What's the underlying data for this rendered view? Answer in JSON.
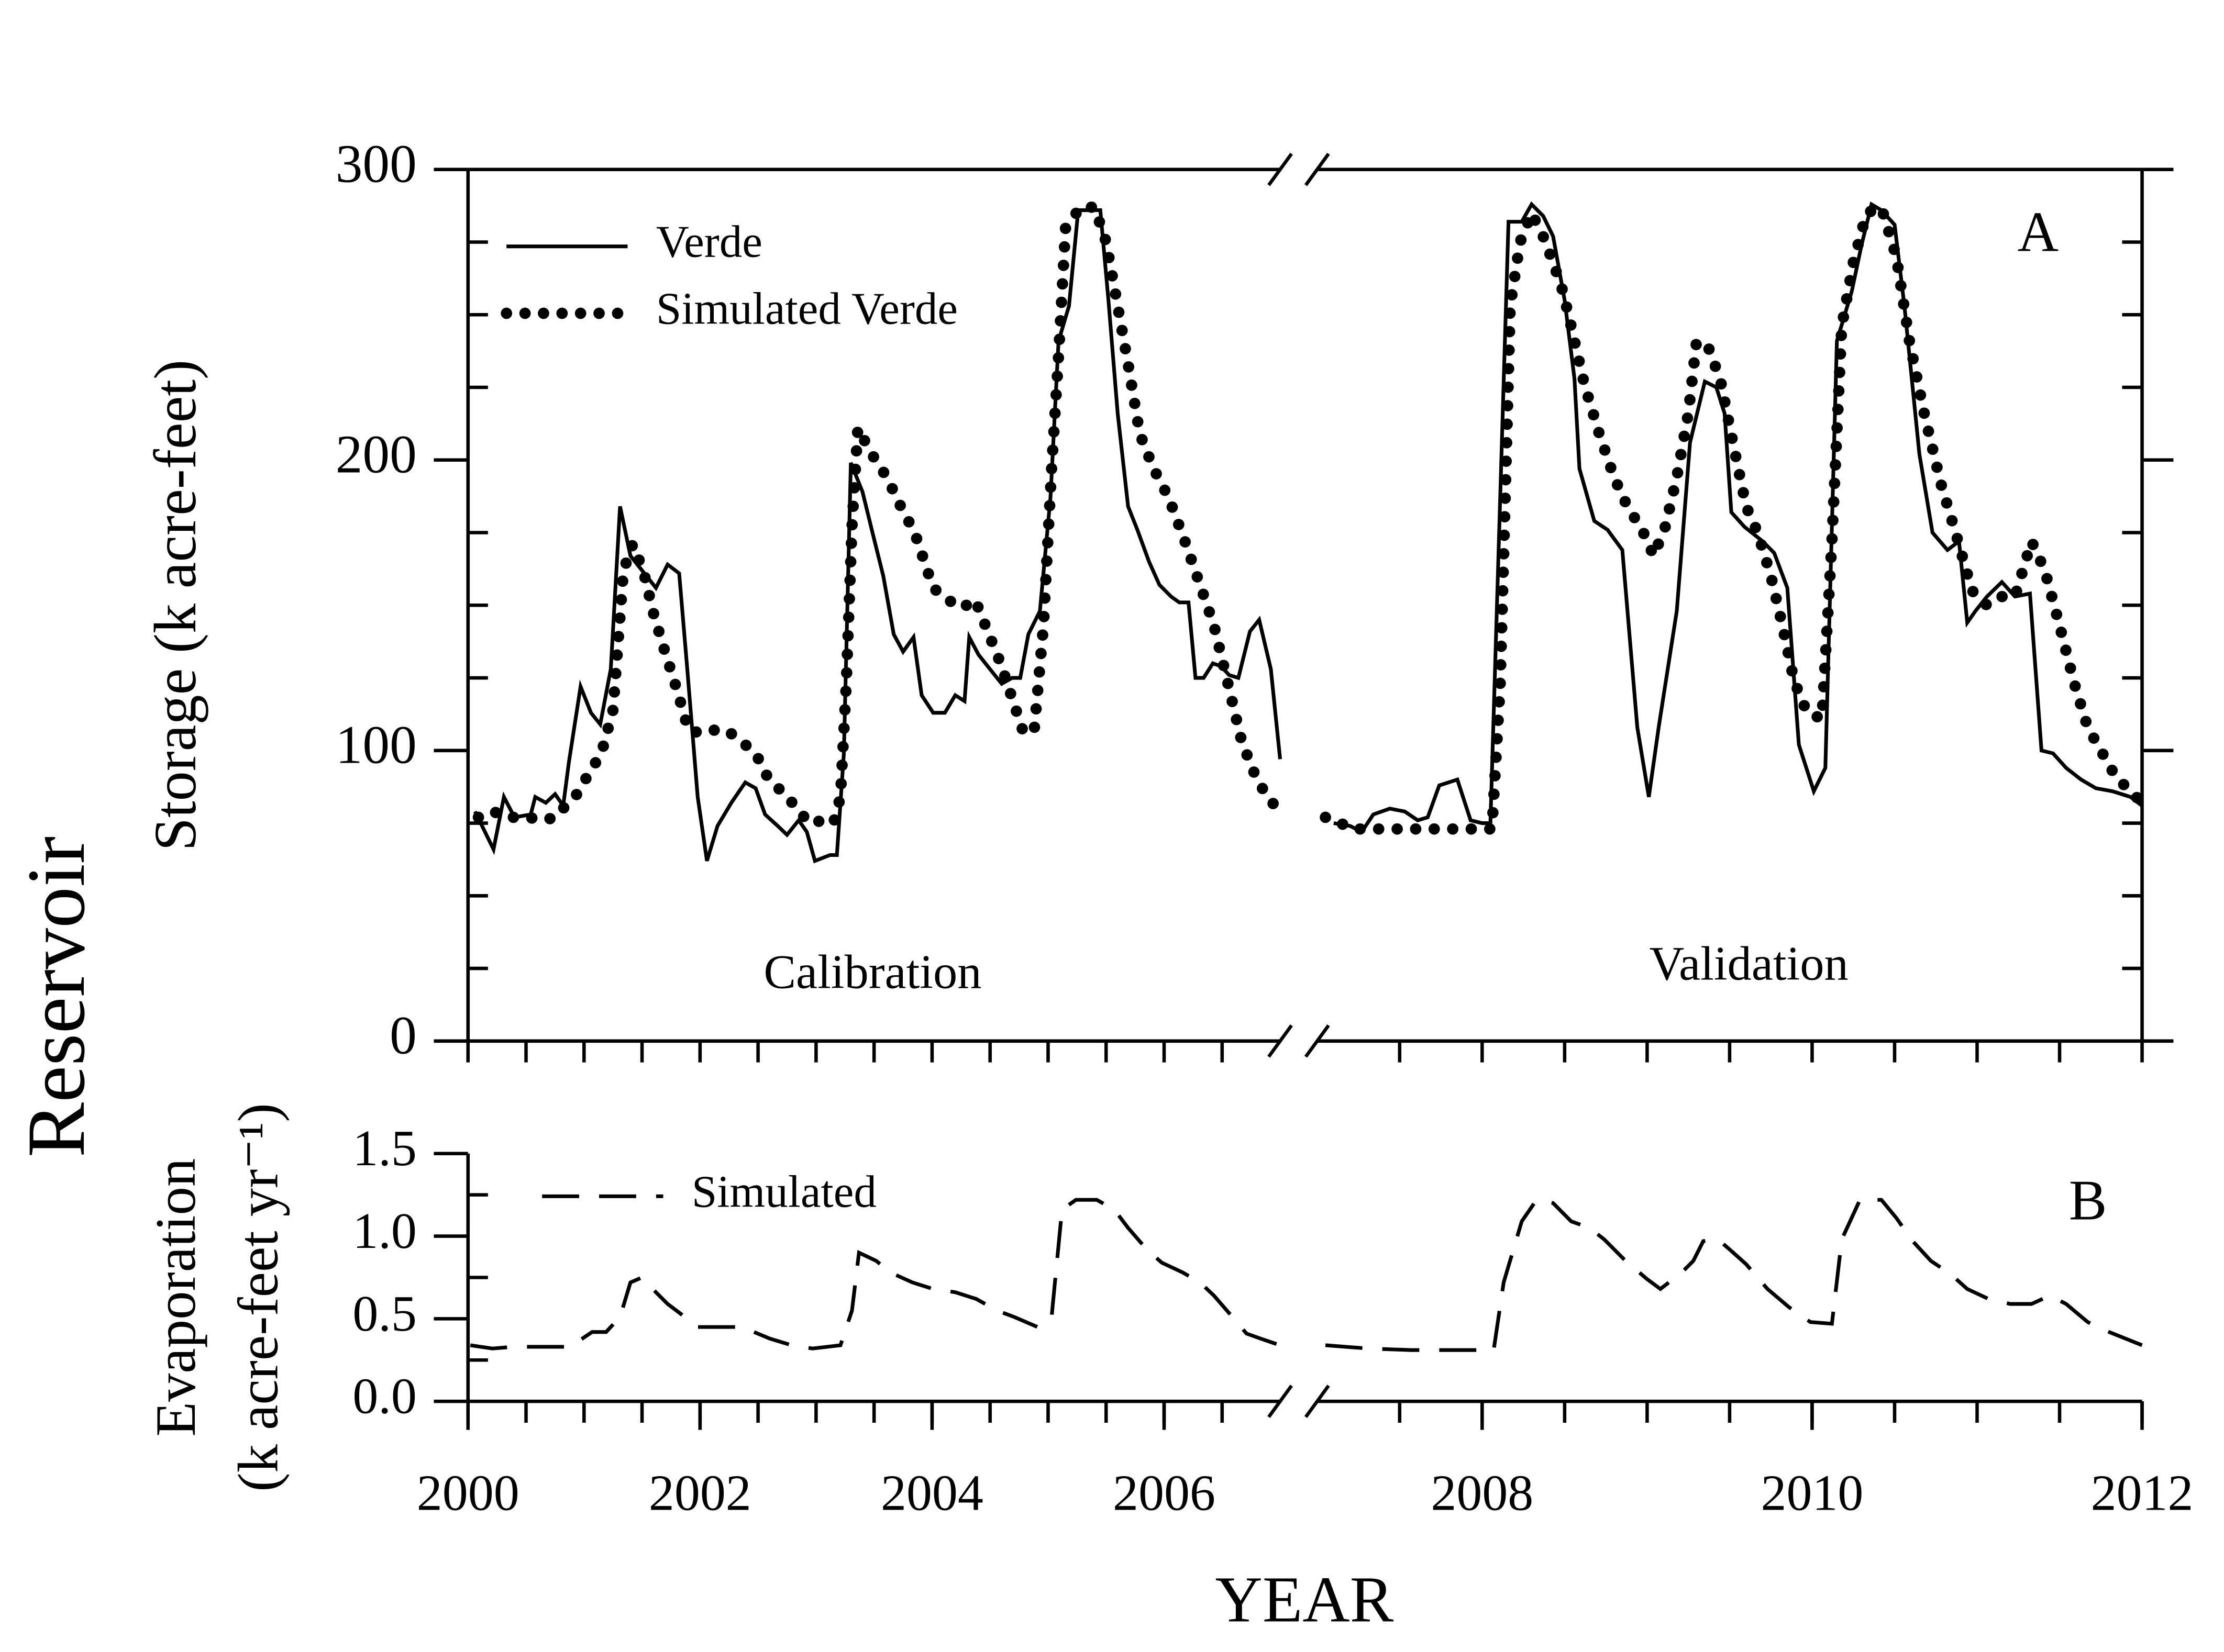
{
  "figure_label": "Reservoir",
  "chart_data": [
    {
      "type": "line",
      "y_label": "Storage (k acre-feet)",
      "panel_label": "A",
      "annotations": [
        "Calibration",
        "Validation"
      ],
      "legend": "upper left",
      "frame": true,
      "xlim": [
        2000,
        2012
      ],
      "axis_break": 2007,
      "xminorticks": [
        2000,
        2000.5,
        2001,
        2001.5,
        2002,
        2002.5,
        2003,
        2003.5,
        2004,
        2004.5,
        2005,
        2005.5,
        2006,
        2006.5,
        2007.5,
        2008,
        2008.5,
        2009,
        2009.5,
        2010,
        2010.5,
        2011,
        2011.5,
        2012
      ],
      "ylim": [
        0,
        300
      ],
      "yticks": [
        0,
        100,
        200,
        300
      ],
      "yminorticks": [
        25,
        50,
        75,
        125,
        150,
        175,
        225,
        250,
        275
      ],
      "series": [
        {
          "name": "Verde",
          "style": "solid",
          "color": "#000000",
          "x": [
            2000.06,
            2000.22,
            2000.31,
            2000.4,
            2000.54,
            2000.58,
            2000.67,
            2000.75,
            2000.82,
            2000.87,
            2000.97,
            2001.06,
            2001.14,
            2001.23,
            2001.31,
            2001.4,
            2001.5,
            2001.62,
            2001.72,
            2001.82,
            2001.89,
            2001.98,
            2002.06,
            2002.15,
            2002.27,
            2002.39,
            2002.48,
            2002.56,
            2002.67,
            2002.75,
            2002.85,
            2002.92,
            2002.99,
            2003.12,
            2003.18,
            2003.24,
            2003.3,
            2003.4,
            2003.48,
            2003.58,
            2003.67,
            2003.75,
            2003.84,
            2003.91,
            2004.01,
            2004.11,
            2004.2,
            2004.28,
            2004.32,
            2004.4,
            2004.5,
            2004.6,
            2004.69,
            2004.76,
            2004.83,
            2004.93,
            2005.02,
            2005.09,
            2005.18,
            2005.26,
            2005.36,
            2005.45,
            2005.52,
            2005.6,
            2005.69,
            2005.77,
            2005.87,
            2005.96,
            2006.06,
            2006.13,
            2006.21,
            2006.27,
            2006.34,
            2006.42,
            2006.49,
            2006.56,
            2006.64,
            2006.74,
            2006.82,
            2006.92,
            2007.0,
            2007.1,
            2007.2,
            2007.27,
            2007.34,
            2007.44,
            2007.53,
            2007.61,
            2007.67,
            2007.74,
            2007.85,
            2007.93,
            2008.0,
            2008.05,
            2008.16,
            2008.24,
            2008.3,
            2008.37,
            2008.43,
            2008.5,
            2008.56,
            2008.59,
            2008.68,
            2008.76,
            2008.85,
            2008.94,
            2009.01,
            2009.07,
            2009.18,
            2009.26,
            2009.35,
            2009.42,
            2009.47,
            2009.51,
            2009.59,
            2009.7,
            2009.77,
            2009.85,
            2009.92,
            2010.01,
            2010.08,
            2010.15,
            2010.24,
            2010.3,
            2010.36,
            2010.42,
            2010.5,
            2010.56,
            2010.65,
            2010.73,
            2010.82,
            2010.89,
            2010.94,
            2010.99,
            2011.06,
            2011.15,
            2011.23,
            2011.32,
            2011.39,
            2011.46,
            2011.54,
            2011.63,
            2011.72,
            2011.82,
            2011.93,
            2012.0
          ],
          "values": [
            79,
            66,
            84,
            77,
            78,
            84,
            82,
            85,
            81,
            96,
            122,
            113,
            109,
            128,
            184,
            167,
            162,
            156,
            164,
            161,
            128,
            84,
            62,
            74,
            82,
            89,
            87,
            78,
            74,
            71,
            76,
            72,
            62,
            64,
            64,
            99,
            199,
            189,
            176,
            160,
            140,
            134,
            139,
            119,
            113,
            113,
            119,
            117,
            139,
            133,
            128,
            123,
            125,
            125,
            140,
            148,
            187,
            241,
            253,
            286,
            286,
            286,
            255,
            216,
            184,
            176,
            165,
            157,
            153,
            151,
            151,
            125,
            125,
            130,
            129,
            126,
            125,
            141,
            145,
            128,
            97,
            75,
            74,
            72,
            78,
            80,
            79,
            76,
            77,
            88,
            90,
            76,
            75,
            75,
            282,
            282,
            288,
            284,
            277,
            255,
            228,
            197,
            179,
            176,
            169,
            108,
            84,
            108,
            148,
            206,
            227,
            225,
            216,
            182,
            177,
            172,
            168,
            156,
            102,
            86,
            94,
            241,
            258,
            274,
            288,
            286,
            281,
            253,
            202,
            175,
            169,
            172,
            144,
            148,
            153,
            158,
            153,
            154,
            100,
            99,
            94,
            90,
            87,
            86,
            84,
            81
          ]
        },
        {
          "name": "Simulated Verde",
          "style": "dotted",
          "color": "#000000",
          "x": [
            2000.09,
            2000.21,
            2000.37,
            2000.52,
            2000.64,
            2000.76,
            2000.86,
            2000.94,
            2001.04,
            2001.15,
            2001.25,
            2001.34,
            2001.42,
            2001.51,
            2001.6,
            2001.69,
            2001.8,
            2001.9,
            2002.01,
            2002.11,
            2002.23,
            2002.36,
            2002.48,
            2002.58,
            2002.7,
            2002.82,
            2002.94,
            2003.07,
            2003.15,
            2003.21,
            2003.26,
            2003.31,
            2003.36,
            2003.48,
            2003.61,
            2003.73,
            2003.85,
            2004.01,
            2004.13,
            2004.26,
            2004.37,
            2004.49,
            2004.59,
            2004.69,
            2004.79,
            2004.88,
            2004.96,
            2005.03,
            2005.09,
            2005.15,
            2005.28,
            2005.4,
            2005.5,
            2005.6,
            2005.69,
            2005.79,
            2005.91,
            2006.04,
            2006.18,
            2006.31,
            2006.43,
            2006.55,
            2006.67,
            2006.79,
            2006.89,
            2007.0,
            2007.05,
            2007.14,
            2007.22,
            2007.33,
            2007.44,
            2007.57,
            2007.7,
            2007.83,
            2007.96,
            2008.06,
            2008.11,
            2008.14,
            2008.17,
            2008.23,
            2008.3,
            2008.37,
            2008.43,
            2008.49,
            2008.54,
            2008.62,
            2008.71,
            2008.8,
            2008.88,
            2008.97,
            2009.04,
            2009.11,
            2009.18,
            2009.25,
            2009.3,
            2009.38,
            2009.45,
            2009.52,
            2009.6,
            2009.67,
            2009.75,
            2009.82,
            2009.89,
            2009.97,
            2010.06,
            2010.12,
            2010.18,
            2010.25,
            2010.33,
            2010.42,
            2010.51,
            2010.59,
            2010.68,
            2010.78,
            2010.87,
            2010.97,
            2011.06,
            2011.15,
            2011.23,
            2011.33,
            2011.41,
            2011.5,
            2011.59,
            2011.67,
            2011.76,
            2011.84,
            2011.93,
            2012.0
          ],
          "values": [
            77,
            79,
            77,
            77,
            76,
            77,
            82,
            85,
            92,
            99,
            114,
            162,
            171,
            162,
            147,
            135,
            121,
            107,
            106,
            107,
            107,
            103,
            99,
            91,
            86,
            81,
            75,
            76,
            75,
            84,
            123,
            177,
            211,
            202,
            194,
            184,
            175,
            156,
            152,
            149,
            152,
            140,
            130,
            118,
            106,
            107,
            143,
            197,
            236,
            280,
            287,
            287,
            275,
            253,
            233,
            209,
            197,
            187,
            172,
            157,
            143,
            123,
            103,
            91,
            84,
            79,
            77,
            75,
            73,
            73,
            73,
            73,
            73,
            73,
            73,
            73,
            123,
            187,
            253,
            275,
            285,
            277,
            268,
            258,
            246,
            226,
            209,
            194,
            184,
            176,
            167,
            177,
            194,
            216,
            241,
            238,
            226,
            206,
            184,
            175,
            160,
            143,
            124,
            113,
            111,
            172,
            246,
            268,
            285,
            287,
            270,
            241,
            216,
            192,
            175,
            155,
            150,
            153,
            153,
            172,
            162,
            143,
            123,
            108,
            99,
            91,
            86,
            82
          ]
        }
      ]
    },
    {
      "type": "line",
      "y_label": [
        "Evaporation",
        "(k acre-feet yr⁻¹)"
      ],
      "x_label": "YEAR",
      "panel_label": "B",
      "legend": "upper left",
      "frame": false,
      "xlim": [
        2000,
        2012
      ],
      "axis_break": 2007,
      "xticks": [
        2000,
        2002,
        2004,
        2006,
        2008,
        2010,
        2012
      ],
      "xminorticks": [
        2000,
        2000.5,
        2001,
        2001.5,
        2002,
        2002.5,
        2003,
        2003.5,
        2004,
        2004.5,
        2005,
        2005.5,
        2006,
        2006.5,
        2007.5,
        2008,
        2008.5,
        2009,
        2009.5,
        2010,
        2010.5,
        2011,
        2011.5,
        2012
      ],
      "ylim": [
        0,
        1.5
      ],
      "yticks": [
        {
          "value": 0,
          "label": "0.0"
        },
        0.5,
        {
          "value": 1,
          "label": "1.0"
        },
        1.5
      ],
      "yminorticks": [
        0.25,
        0.75,
        1.25
      ],
      "series": [
        {
          "name": "Simulated",
          "style": "dashed",
          "color": "#000000",
          "x": [
            2000.02,
            2000.21,
            2000.39,
            2000.88,
            2001.07,
            2001.19,
            2001.31,
            2001.4,
            2001.5,
            2001.62,
            2001.72,
            2001.87,
            2001.98,
            2002.36,
            2002.6,
            2002.79,
            2002.97,
            2003.21,
            2003.31,
            2003.37,
            2003.52,
            2003.64,
            2003.83,
            2004.01,
            2004.2,
            2004.38,
            2004.56,
            2004.71,
            2004.91,
            2005.03,
            2005.12,
            2005.24,
            2005.42,
            2005.57,
            2005.69,
            2005.85,
            2005.98,
            2006.16,
            2006.31,
            2006.43,
            2006.59,
            2006.71,
            2006.83,
            2007.0,
            2007.05,
            2007.31,
            2007.57,
            2007.83,
            2008.07,
            2008.13,
            2008.24,
            2008.33,
            2008.43,
            2008.54,
            2008.65,
            2008.74,
            2008.87,
            2009.0,
            2009.08,
            2009.21,
            2009.28,
            2009.34,
            2009.43,
            2009.51,
            2009.6,
            2009.73,
            2009.86,
            2009.99,
            2010.12,
            2010.18,
            2010.29,
            2010.42,
            2010.51,
            2010.61,
            2010.72,
            2010.84,
            2010.94,
            2011.07,
            2011.2,
            2011.33,
            2011.44,
            2011.54,
            2011.67,
            2011.8,
            2012.0
          ],
          "values": [
            0.34,
            0.32,
            0.33,
            0.33,
            0.42,
            0.42,
            0.51,
            0.72,
            0.75,
            0.66,
            0.59,
            0.51,
            0.45,
            0.45,
            0.38,
            0.34,
            0.32,
            0.34,
            0.55,
            0.9,
            0.85,
            0.78,
            0.72,
            0.68,
            0.66,
            0.62,
            0.55,
            0.51,
            0.45,
            0.51,
            1.16,
            1.22,
            1.22,
            1.16,
            1.05,
            0.92,
            0.84,
            0.78,
            0.72,
            0.64,
            0.51,
            0.41,
            0.38,
            0.34,
            0.34,
            0.32,
            0.31,
            0.31,
            0.31,
            0.72,
            1.09,
            1.22,
            1.2,
            1.09,
            1.05,
            0.98,
            0.85,
            0.74,
            0.68,
            0.78,
            0.85,
            0.97,
            0.98,
            0.91,
            0.83,
            0.68,
            0.57,
            0.48,
            0.47,
            0.98,
            1.22,
            1.22,
            1.11,
            0.97,
            0.85,
            0.77,
            0.68,
            0.62,
            0.59,
            0.59,
            0.64,
            0.59,
            0.48,
            0.42,
            0.34
          ]
        }
      ]
    }
  ]
}
